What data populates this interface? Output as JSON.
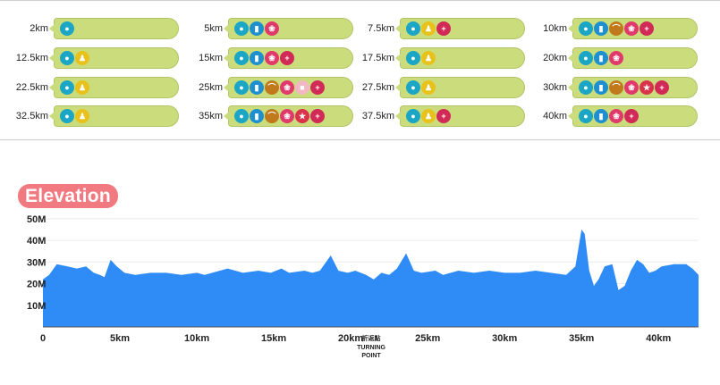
{
  "icons": {
    "water": {
      "color": "#1aa6c4",
      "glyph": "●"
    },
    "sports_drink": {
      "color": "#1e8fcf",
      "glyph": "▮"
    },
    "banana": {
      "color": "#c07a1c",
      "glyph": "⌒"
    },
    "sweets": {
      "color": "#e03a6a",
      "glyph": "❀"
    },
    "sponge": {
      "color": "#f1b7c2",
      "glyph": "■"
    },
    "special": {
      "color": "#d8334a",
      "glyph": "★"
    },
    "aid": {
      "color": "#d12a56",
      "glyph": "+"
    },
    "toilet": {
      "color": "#e8c21a",
      "glyph": "♟"
    }
  },
  "stations": [
    {
      "km": "2km",
      "services": [
        "water"
      ]
    },
    {
      "km": "5km",
      "services": [
        "water",
        "sports_drink",
        "sweets"
      ]
    },
    {
      "km": "7.5km",
      "services": [
        "water",
        "toilet",
        "aid"
      ]
    },
    {
      "km": "10km",
      "services": [
        "water",
        "sports_drink",
        "banana",
        "sweets",
        "aid"
      ]
    },
    {
      "km": "12.5km",
      "services": [
        "water",
        "toilet"
      ]
    },
    {
      "km": "15km",
      "services": [
        "water",
        "sports_drink",
        "sweets",
        "aid"
      ]
    },
    {
      "km": "17.5km",
      "services": [
        "water",
        "toilet"
      ]
    },
    {
      "km": "20km",
      "services": [
        "water",
        "sports_drink",
        "sweets"
      ]
    },
    {
      "km": "22.5km",
      "services": [
        "water",
        "toilet"
      ]
    },
    {
      "km": "25km",
      "services": [
        "water",
        "sports_drink",
        "banana",
        "sweets",
        "sponge",
        "aid"
      ]
    },
    {
      "km": "27.5km",
      "services": [
        "water",
        "toilet"
      ]
    },
    {
      "km": "30km",
      "services": [
        "water",
        "sports_drink",
        "banana",
        "sweets",
        "special",
        "aid"
      ]
    },
    {
      "km": "32.5km",
      "services": [
        "water",
        "toilet"
      ]
    },
    {
      "km": "35km",
      "services": [
        "water",
        "sports_drink",
        "banana",
        "sweets",
        "special",
        "aid"
      ]
    },
    {
      "km": "37.5km",
      "services": [
        "water",
        "toilet",
        "aid"
      ]
    },
    {
      "km": "40km",
      "services": [
        "water",
        "sports_drink",
        "sweets",
        "aid"
      ]
    }
  ],
  "elevation": {
    "title": "Elevation",
    "turning_label_jp": "折返點",
    "turning_label_en_1": "TURNING",
    "turning_label_en_2": "POINT"
  },
  "chart_data": {
    "type": "area",
    "title": "Elevation",
    "xlabel": "",
    "ylabel": "",
    "xlim": [
      0,
      42.6
    ],
    "ylim": [
      0,
      52
    ],
    "yticks": [
      {
        "v": 10,
        "label": "10M"
      },
      {
        "v": 20,
        "label": "20M"
      },
      {
        "v": 30,
        "label": "30M"
      },
      {
        "v": 40,
        "label": "40M"
      },
      {
        "v": 50,
        "label": "50M"
      }
    ],
    "xticks": [
      {
        "v": 0,
        "label": "0"
      },
      {
        "v": 5,
        "label": "5km"
      },
      {
        "v": 10,
        "label": "10km"
      },
      {
        "v": 15,
        "label": "15km"
      },
      {
        "v": 20,
        "label": "20km"
      },
      {
        "v": 25,
        "label": "25km"
      },
      {
        "v": 30,
        "label": "30km"
      },
      {
        "v": 35,
        "label": "35km"
      },
      {
        "v": 40,
        "label": "40km"
      }
    ],
    "turning_point_km": 21.1,
    "color": "#2f8cf7",
    "grid": true,
    "x": [
      0,
      0.4,
      0.9,
      1.6,
      2.2,
      2.8,
      3.3,
      3.7,
      4.0,
      4.4,
      4.8,
      5.3,
      6.0,
      7.0,
      8.0,
      9.0,
      10.0,
      10.5,
      11.0,
      11.5,
      12.0,
      13.0,
      14.0,
      14.8,
      15.5,
      16.0,
      17.0,
      17.5,
      18.0,
      18.7,
      19.2,
      19.8,
      20.3,
      21.0,
      21.5,
      22.0,
      22.5,
      23.0,
      23.6,
      24.1,
      24.6,
      25.5,
      26.0,
      27.0,
      28.0,
      29.0,
      30.0,
      31.0,
      32.0,
      33.0,
      34.0,
      34.6,
      35.0,
      35.2,
      35.5,
      35.8,
      36.1,
      36.5,
      37.0,
      37.4,
      37.8,
      38.2,
      38.6,
      39.0,
      39.4,
      39.8,
      40.2,
      41.0,
      41.8,
      42.2,
      42.6
    ],
    "y": [
      22,
      24,
      29,
      28,
      27,
      28,
      25,
      24,
      23,
      31,
      28,
      25,
      24,
      25,
      25,
      24,
      25,
      24,
      25,
      26,
      27,
      25,
      26,
      25,
      27,
      25,
      26,
      25,
      26,
      33,
      26,
      25,
      26,
      24,
      22,
      25,
      24,
      27,
      34,
      26,
      25,
      26,
      24,
      26,
      25,
      26,
      25,
      25,
      26,
      25,
      24,
      28,
      45,
      43,
      26,
      19,
      22,
      28,
      29,
      17,
      19,
      26,
      31,
      29,
      25,
      26,
      28,
      29,
      29,
      27,
      24
    ]
  }
}
